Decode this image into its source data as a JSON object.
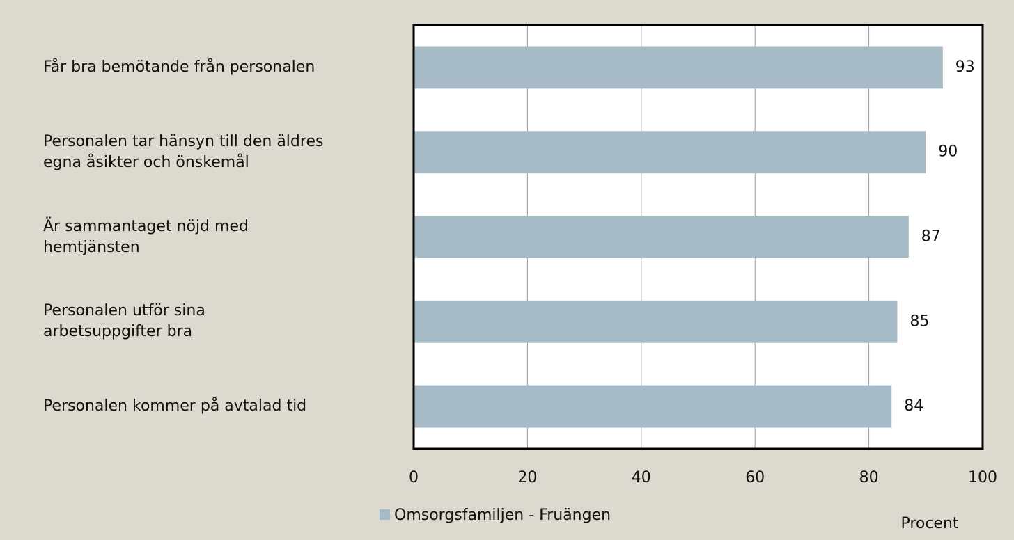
{
  "chart_data": {
    "type": "bar",
    "orientation": "horizontal",
    "categories": [
      "Får bra bemötande från personalen",
      "Personalen tar hänsyn till den äldres\negna åsikter och önskemål",
      "Är sammantaget nöjd med\nhemtjänsten",
      "Personalen utför sina\narbetsuppgifter bra",
      "Personalen kommer på avtalad tid"
    ],
    "series": [
      {
        "name": "Omsorgsfamiljen - Fruängen",
        "color": "#a7bbc7",
        "values": [
          93,
          90,
          87,
          85,
          84
        ]
      }
    ],
    "xlim": [
      0,
      100
    ],
    "xticks": [
      0,
      20,
      40,
      60,
      80,
      100
    ],
    "xlabel": "Procent",
    "grid": true,
    "legend": "bottom"
  }
}
